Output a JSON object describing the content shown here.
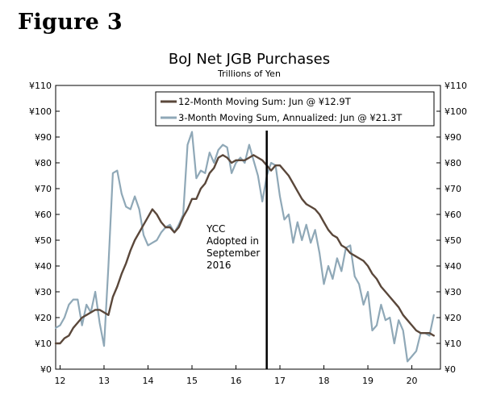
{
  "figure_label": "Figure 3",
  "colors": {
    "ma12": "#5a473a",
    "ann3": "#8fa8b7",
    "event_line": "#000000",
    "axis": "#000000"
  },
  "chart_data": {
    "type": "line",
    "title": "BoJ Net JGB Purchases",
    "subtitle": "Trillions of Yen",
    "xlabel": "",
    "ylabel": "",
    "xlim": [
      11.9,
      20.65
    ],
    "ylim": [
      0,
      110
    ],
    "x_ticks": [
      12,
      13,
      14,
      15,
      16,
      17,
      18,
      19,
      20
    ],
    "x_tick_labels": [
      "12",
      "13",
      "14",
      "15",
      "16",
      "17",
      "18",
      "19",
      "20"
    ],
    "y_ticks": [
      0,
      10,
      20,
      30,
      40,
      50,
      60,
      70,
      80,
      90,
      100,
      110
    ],
    "y_tick_labels": [
      "¥0",
      "¥10",
      "¥20",
      "¥30",
      "¥40",
      "¥50",
      "¥60",
      "¥70",
      "¥80",
      "¥90",
      "¥100",
      "¥110"
    ],
    "legend": {
      "position": "top-right",
      "entries": [
        "12-Month Moving Sum: Jun @ ¥12.9T",
        "3-Month Moving Sum, Annualized: Jun @ ¥21.3T"
      ]
    },
    "event": {
      "x": 16.7,
      "label_lines": [
        "YCC",
        "Adopted in",
        "September",
        "2016"
      ]
    },
    "series": [
      {
        "name": "12-Month Moving Sum: Jun @ ¥12.9T",
        "x": [
          11.9,
          12.0,
          12.1,
          12.2,
          12.3,
          12.4,
          12.5,
          12.6,
          12.7,
          12.8,
          12.9,
          13.0,
          13.1,
          13.2,
          13.3,
          13.4,
          13.5,
          13.6,
          13.7,
          13.8,
          13.9,
          14.0,
          14.1,
          14.2,
          14.3,
          14.4,
          14.5,
          14.6,
          14.7,
          14.8,
          14.9,
          15.0,
          15.1,
          15.2,
          15.3,
          15.4,
          15.5,
          15.6,
          15.7,
          15.8,
          15.9,
          16.0,
          16.1,
          16.2,
          16.3,
          16.4,
          16.5,
          16.6,
          16.7,
          16.8,
          16.9,
          17.0,
          17.1,
          17.2,
          17.3,
          17.4,
          17.5,
          17.6,
          17.7,
          17.8,
          17.9,
          18.0,
          18.1,
          18.2,
          18.3,
          18.4,
          18.5,
          18.6,
          18.7,
          18.8,
          18.9,
          19.0,
          19.1,
          19.2,
          19.3,
          19.4,
          19.5,
          19.6,
          19.7,
          19.8,
          19.9,
          20.0,
          20.1,
          20.2,
          20.3,
          20.4,
          20.5
        ],
        "values": [
          10,
          10,
          12,
          13,
          16,
          18,
          20,
          21,
          22,
          23,
          23,
          22,
          21,
          28,
          32,
          37,
          41,
          46,
          50,
          53,
          56,
          59,
          62,
          60,
          57,
          55,
          55,
          53,
          55,
          59,
          62,
          66,
          66,
          70,
          72,
          76,
          78,
          82,
          83,
          82,
          80,
          81,
          81,
          81,
          82,
          83,
          82,
          81,
          79,
          77,
          79,
          79,
          77,
          75,
          72,
          69,
          66,
          64,
          63,
          62,
          60,
          57,
          54,
          52,
          51,
          48,
          47,
          45,
          44,
          43,
          42,
          40,
          37,
          35,
          32,
          30,
          28,
          26,
          24,
          21,
          19,
          17,
          15,
          14,
          14,
          14,
          13
        ]
      },
      {
        "name": "3-Month Moving Sum, Annualized: Jun @ ¥21.3T",
        "x": [
          11.9,
          12.0,
          12.1,
          12.2,
          12.3,
          12.4,
          12.5,
          12.6,
          12.7,
          12.8,
          12.9,
          13.0,
          13.1,
          13.2,
          13.3,
          13.4,
          13.5,
          13.6,
          13.7,
          13.8,
          13.9,
          14.0,
          14.1,
          14.2,
          14.3,
          14.4,
          14.5,
          14.6,
          14.7,
          14.8,
          14.9,
          15.0,
          15.1,
          15.2,
          15.3,
          15.4,
          15.5,
          15.6,
          15.7,
          15.8,
          15.9,
          16.0,
          16.1,
          16.2,
          16.3,
          16.4,
          16.5,
          16.6,
          16.7,
          16.8,
          16.9,
          17.0,
          17.1,
          17.2,
          17.3,
          17.4,
          17.5,
          17.6,
          17.7,
          17.8,
          17.9,
          18.0,
          18.1,
          18.2,
          18.3,
          18.4,
          18.5,
          18.6,
          18.7,
          18.8,
          18.9,
          19.0,
          19.1,
          19.2,
          19.3,
          19.4,
          19.5,
          19.6,
          19.7,
          19.8,
          19.9,
          20.0,
          20.1,
          20.2,
          20.3,
          20.4,
          20.5
        ],
        "values": [
          16,
          17,
          20,
          25,
          27,
          27,
          17,
          25,
          22,
          30,
          18,
          9,
          40,
          76,
          77,
          68,
          63,
          62,
          67,
          62,
          52,
          48,
          49,
          50,
          53,
          55,
          56,
          53,
          56,
          60,
          87,
          92,
          74,
          77,
          76,
          84,
          80,
          85,
          87,
          86,
          76,
          80,
          82,
          80,
          87,
          81,
          75,
          65,
          75,
          80,
          79,
          67,
          58,
          60,
          49,
          57,
          50,
          56,
          49,
          54,
          45,
          33,
          40,
          35,
          43,
          38,
          47,
          48,
          36,
          33,
          25,
          30,
          15,
          17,
          25,
          19,
          20,
          10,
          19,
          15,
          3,
          5,
          7,
          14,
          14,
          13,
          21
        ]
      }
    ]
  }
}
